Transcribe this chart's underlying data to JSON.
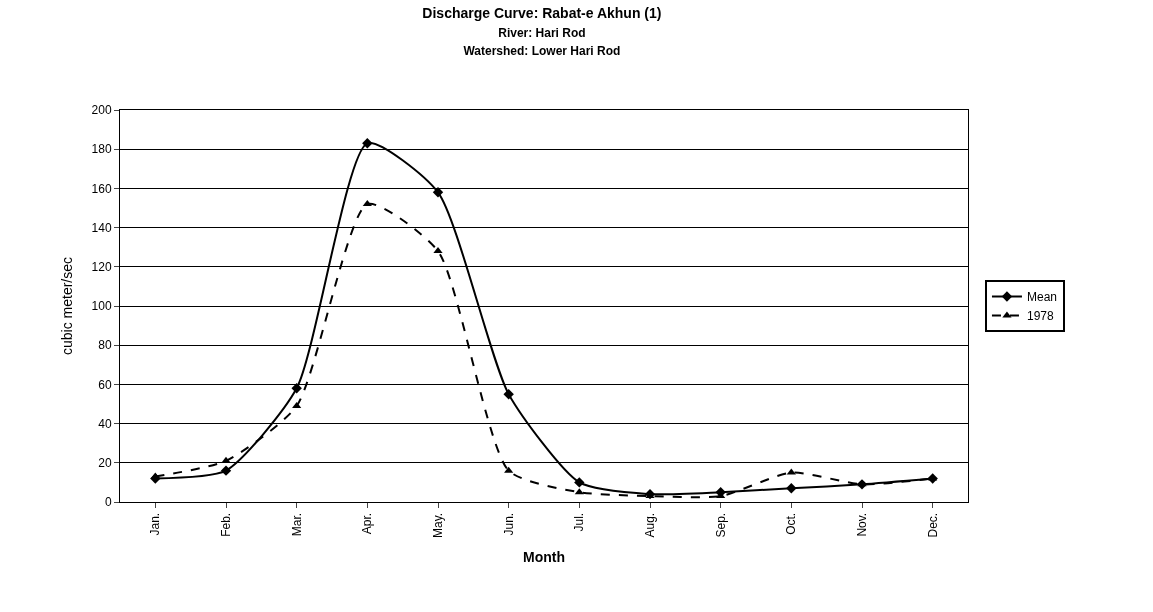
{
  "chart_data": {
    "type": "line",
    "title": "Discharge Curve: Rabat-e Akhun (1)",
    "subtitle": "River: Hari Rod\nWatershed: Lower Hari Rod",
    "xlabel": "Month",
    "ylabel": "cubic meter/sec",
    "categories": [
      "Jan.",
      "Feb.",
      "Mar.",
      "Apr.",
      "May.",
      "Jun.",
      "Jul.",
      "Aug.",
      "Sep.",
      "Oct.",
      "Nov.",
      "Dec."
    ],
    "series": [
      {
        "name": "Mean",
        "color": "#000000",
        "marker": "diamond",
        "line_style": "solid",
        "values": [
          12,
          16,
          58,
          183,
          158,
          55,
          10,
          4,
          5,
          7,
          9,
          12
        ]
      },
      {
        "name": "1978",
        "color": "#000000",
        "marker": "triangle",
        "line_style": "dashed",
        "values": [
          13,
          21,
          49,
          152,
          128,
          16,
          5,
          3,
          3,
          15,
          9,
          12
        ]
      }
    ],
    "ylim": [
      0,
      200
    ],
    "yticks": [
      0,
      20,
      40,
      60,
      80,
      100,
      120,
      140,
      160,
      180,
      200
    ],
    "grid": "y",
    "legend": "right"
  }
}
